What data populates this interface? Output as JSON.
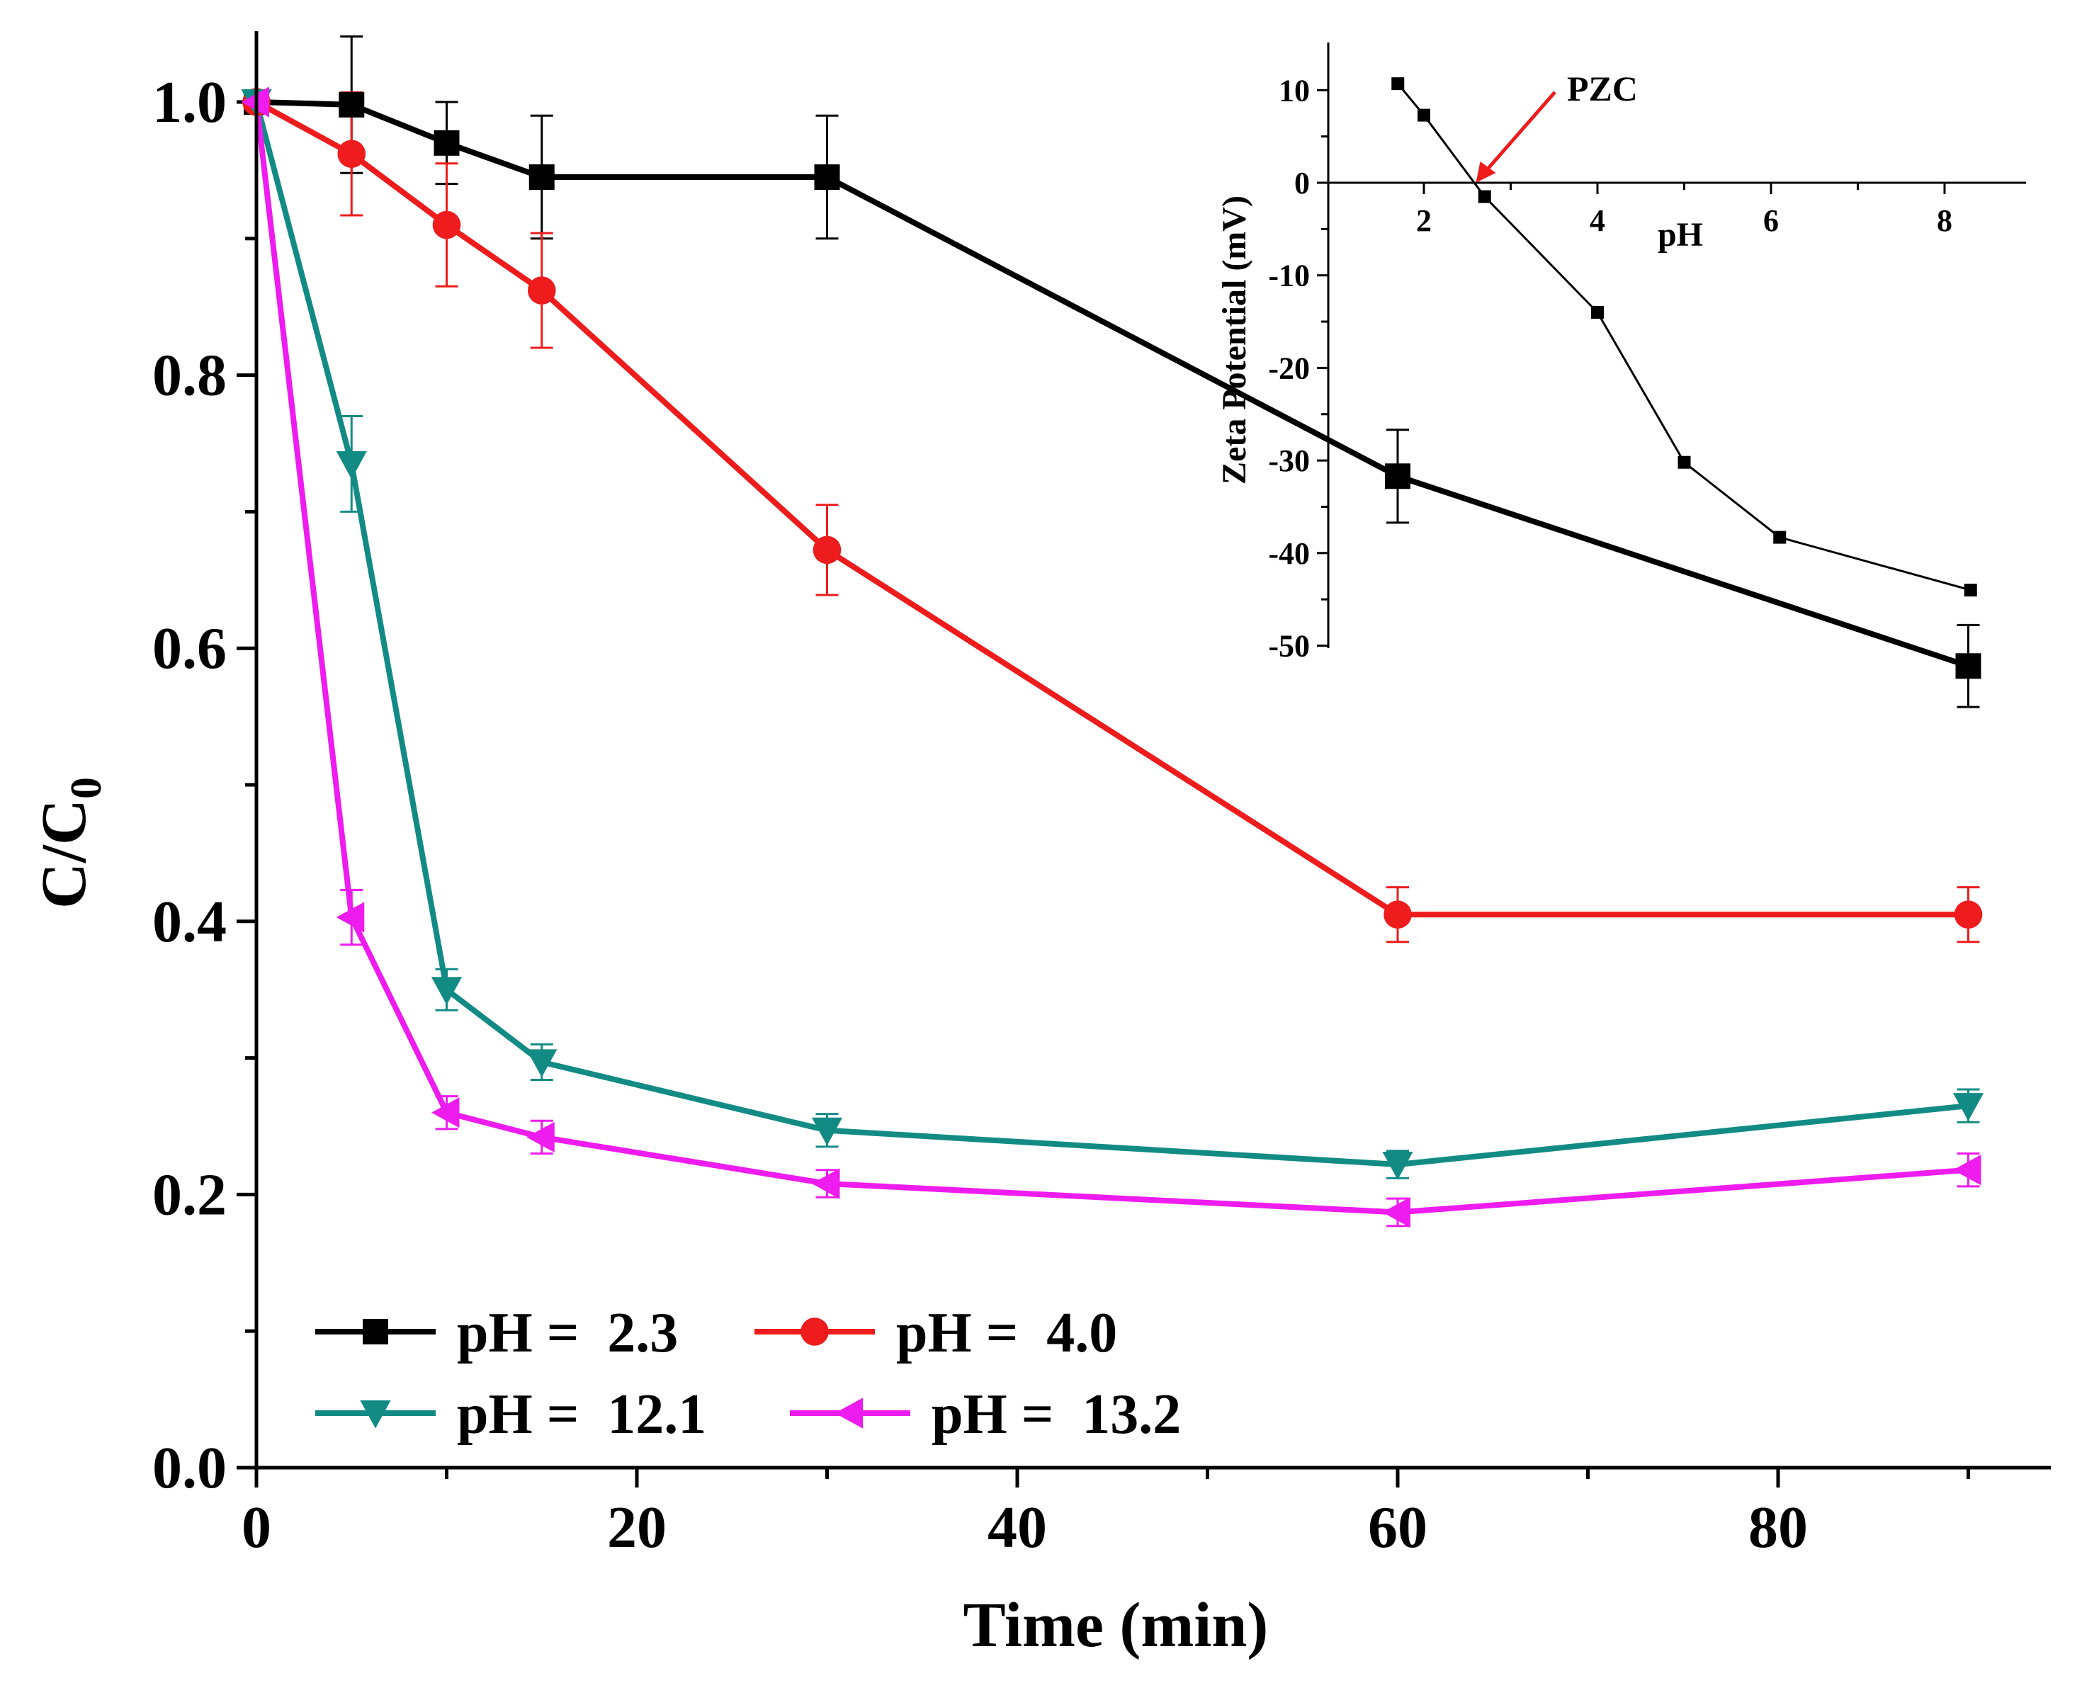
{
  "chart_data": [
    {
      "type": "line",
      "xlabel": "Time (min)",
      "ylabel_main": "C/C",
      "ylabel_sub": "0",
      "xlim": [
        0,
        95
      ],
      "ylim": [
        0,
        1.0
      ],
      "xticks": [
        0,
        20,
        40,
        60,
        80
      ],
      "yticks": [
        0.0,
        0.2,
        0.4,
        0.6,
        0.8,
        1.0
      ],
      "ytick_labels": [
        "0.0",
        "0.2",
        "0.4",
        "0.6",
        "0.8",
        "1.0"
      ],
      "legend_position": "bottom-left",
      "series": [
        {
          "name": "pH =  2.3",
          "color": "#000000",
          "marker": "square",
          "x": [
            0,
            5,
            10,
            15,
            30,
            60,
            90
          ],
          "y": [
            1.0,
            0.998,
            0.97,
            0.945,
            0.945,
            0.726,
            0.587
          ],
          "err": [
            0,
            0.05,
            0.03,
            0.045,
            0.045,
            0.034,
            0.03
          ]
        },
        {
          "name": "pH =  4.0",
          "color": "#ee1c1c",
          "marker": "circle",
          "x": [
            0,
            5,
            10,
            15,
            30,
            60,
            90
          ],
          "y": [
            1.0,
            0.962,
            0.91,
            0.862,
            0.672,
            0.405,
            0.405
          ],
          "err": [
            0,
            0.045,
            0.045,
            0.042,
            0.033,
            0.02,
            0.02
          ]
        },
        {
          "name": "pH =  12.1",
          "color": "#138b85",
          "marker": "triangle-down",
          "x": [
            0,
            5,
            10,
            15,
            30,
            60,
            90
          ],
          "y": [
            1.0,
            0.735,
            0.35,
            0.297,
            0.247,
            0.222,
            0.265
          ],
          "err": [
            0,
            0.035,
            0.015,
            0.013,
            0.012,
            0.01,
            0.012
          ]
        },
        {
          "name": "pH =  13.2",
          "color": "#ee1cee",
          "marker": "triangle-left",
          "x": [
            0,
            5,
            10,
            15,
            30,
            60,
            90
          ],
          "y": [
            1.0,
            0.403,
            0.26,
            0.242,
            0.208,
            0.187,
            0.218
          ],
          "err": [
            0,
            0.02,
            0.012,
            0.012,
            0.01,
            0.01,
            0.012
          ]
        }
      ]
    },
    {
      "type": "line",
      "inset": true,
      "xlabel": "pH",
      "ylabel": "Zeta Potential (mV)",
      "xlim": [
        1.5,
        9
      ],
      "ylim": [
        -50,
        15
      ],
      "xticks": [
        2,
        4,
        6,
        8
      ],
      "yticks": [
        10,
        0,
        -10,
        -20,
        -30,
        -40,
        -50
      ],
      "annotation": "PZC",
      "annotation_x": 2.6,
      "series": [
        {
          "color": "#000000",
          "marker": "square",
          "x": [
            1.7,
            2.0,
            2.7,
            4.0,
            5.0,
            6.1,
            8.3
          ],
          "y": [
            10.7,
            7.3,
            -1.5,
            -14.0,
            -30.2,
            -38.3,
            -44.0
          ]
        }
      ]
    }
  ]
}
